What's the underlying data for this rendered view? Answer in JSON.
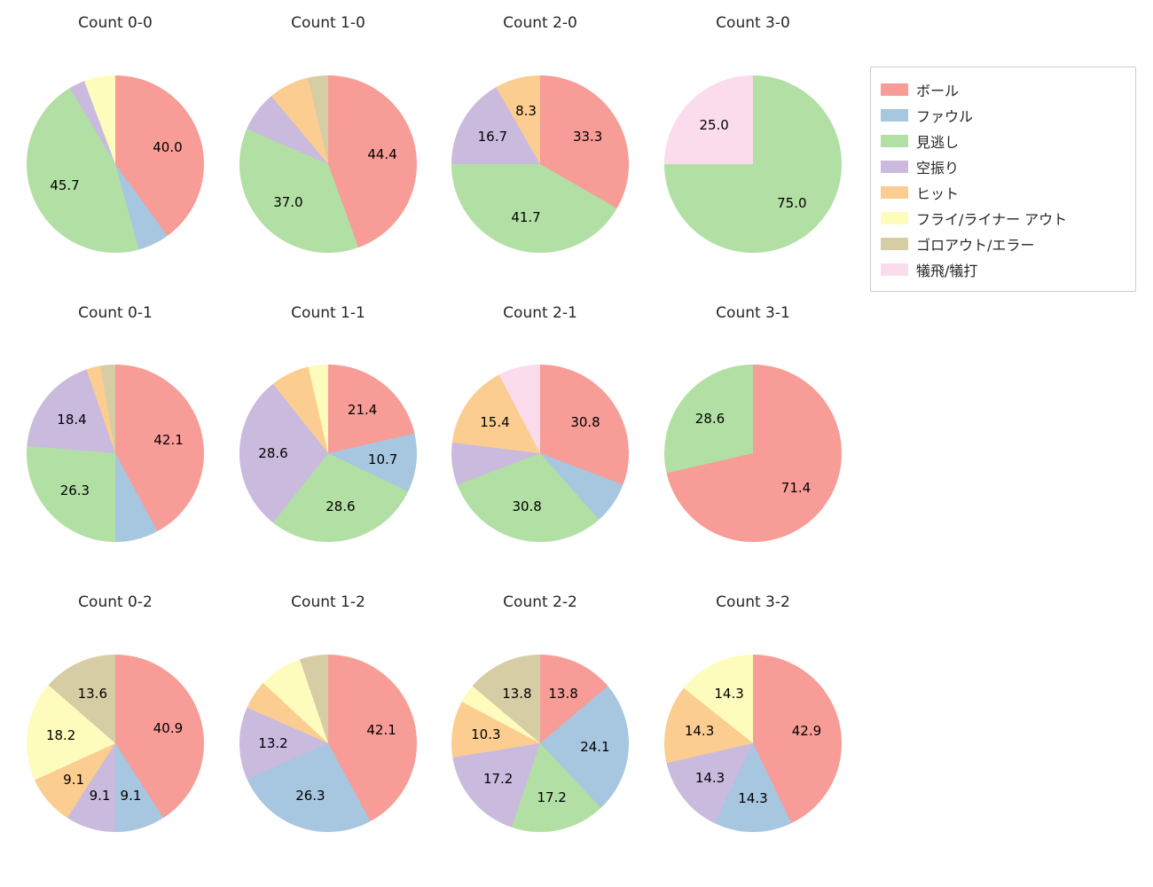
{
  "legend": {
    "position": "top-right",
    "items": [
      {
        "category": "ボール",
        "color": "#f79c96"
      },
      {
        "category": "ファウル",
        "color": "#a7c6e0"
      },
      {
        "category": "見逃し",
        "color": "#b2dfa4"
      },
      {
        "category": "空振り",
        "color": "#cabade"
      },
      {
        "category": "ヒット",
        "color": "#fbcd90"
      },
      {
        "category": "フライ/ライナー アウト",
        "color": "#fdfcbc"
      },
      {
        "category": "ゴロアウト/エラー",
        "color": "#d7cda5"
      },
      {
        "category": "犠飛/犠打",
        "color": "#fbdcec"
      }
    ]
  },
  "chart_data": [
    {
      "type": "pie",
      "title": "Count 0-0",
      "unit": "percent",
      "start_angle_deg": 0,
      "direction": "clockwise",
      "slices": [
        {
          "category": "ボール",
          "value": 40.0,
          "label": "40.0"
        },
        {
          "category": "ファウル",
          "value": 5.7,
          "label": ""
        },
        {
          "category": "見逃し",
          "value": 45.7,
          "label": "45.7"
        },
        {
          "category": "空振り",
          "value": 2.9,
          "label": ""
        },
        {
          "category": "フライ/ライナー アウト",
          "value": 5.7,
          "label": ""
        }
      ]
    },
    {
      "type": "pie",
      "title": "Count 1-0",
      "unit": "percent",
      "start_angle_deg": 0,
      "direction": "clockwise",
      "slices": [
        {
          "category": "ボール",
          "value": 44.4,
          "label": "44.4"
        },
        {
          "category": "見逃し",
          "value": 37.0,
          "label": "37.0"
        },
        {
          "category": "空振り",
          "value": 7.4,
          "label": ""
        },
        {
          "category": "ヒット",
          "value": 7.4,
          "label": ""
        },
        {
          "category": "ゴロアウト/エラー",
          "value": 3.7,
          "label": ""
        }
      ]
    },
    {
      "type": "pie",
      "title": "Count 2-0",
      "unit": "percent",
      "start_angle_deg": 0,
      "direction": "clockwise",
      "slices": [
        {
          "category": "ボール",
          "value": 33.3,
          "label": "33.3"
        },
        {
          "category": "見逃し",
          "value": 41.7,
          "label": "41.7"
        },
        {
          "category": "空振り",
          "value": 16.7,
          "label": "16.7"
        },
        {
          "category": "ヒット",
          "value": 8.3,
          "label": "8.3"
        }
      ]
    },
    {
      "type": "pie",
      "title": "Count 3-0",
      "unit": "percent",
      "start_angle_deg": 0,
      "direction": "clockwise",
      "slices": [
        {
          "category": "見逃し",
          "value": 75.0,
          "label": "75.0"
        },
        {
          "category": "犠飛/犠打",
          "value": 25.0,
          "label": "25.0"
        }
      ]
    },
    {
      "type": "pie",
      "title": "Count 0-1",
      "unit": "percent",
      "start_angle_deg": 0,
      "direction": "clockwise",
      "slices": [
        {
          "category": "ボール",
          "value": 42.1,
          "label": "42.1"
        },
        {
          "category": "ファウル",
          "value": 7.9,
          "label": ""
        },
        {
          "category": "見逃し",
          "value": 26.3,
          "label": "26.3"
        },
        {
          "category": "空振り",
          "value": 18.4,
          "label": "18.4"
        },
        {
          "category": "ヒット",
          "value": 2.6,
          "label": ""
        },
        {
          "category": "ゴロアウト/エラー",
          "value": 2.7,
          "label": ""
        }
      ]
    },
    {
      "type": "pie",
      "title": "Count 1-1",
      "unit": "percent",
      "start_angle_deg": 0,
      "direction": "clockwise",
      "slices": [
        {
          "category": "ボール",
          "value": 21.4,
          "label": "21.4"
        },
        {
          "category": "ファウル",
          "value": 10.7,
          "label": "10.7"
        },
        {
          "category": "見逃し",
          "value": 28.6,
          "label": "28.6"
        },
        {
          "category": "空振り",
          "value": 28.6,
          "label": "28.6"
        },
        {
          "category": "ヒット",
          "value": 7.1,
          "label": ""
        },
        {
          "category": "フライ/ライナー アウト",
          "value": 3.6,
          "label": ""
        }
      ]
    },
    {
      "type": "pie",
      "title": "Count 2-1",
      "unit": "percent",
      "start_angle_deg": 0,
      "direction": "clockwise",
      "slices": [
        {
          "category": "ボール",
          "value": 30.8,
          "label": "30.8"
        },
        {
          "category": "ファウル",
          "value": 7.7,
          "label": ""
        },
        {
          "category": "見逃し",
          "value": 30.8,
          "label": "30.8"
        },
        {
          "category": "空振り",
          "value": 7.7,
          "label": ""
        },
        {
          "category": "ヒット",
          "value": 15.4,
          "label": "15.4"
        },
        {
          "category": "犠飛/犠打",
          "value": 7.7,
          "label": ""
        }
      ]
    },
    {
      "type": "pie",
      "title": "Count 3-1",
      "unit": "percent",
      "start_angle_deg": 0,
      "direction": "clockwise",
      "slices": [
        {
          "category": "ボール",
          "value": 71.4,
          "label": "71.4"
        },
        {
          "category": "見逃し",
          "value": 28.6,
          "label": "28.6"
        }
      ]
    },
    {
      "type": "pie",
      "title": "Count 0-2",
      "unit": "percent",
      "start_angle_deg": 0,
      "direction": "clockwise",
      "slices": [
        {
          "category": "ボール",
          "value": 40.9,
          "label": "40.9"
        },
        {
          "category": "ファウル",
          "value": 9.1,
          "label": "9.1"
        },
        {
          "category": "空振り",
          "value": 9.1,
          "label": "9.1"
        },
        {
          "category": "ヒット",
          "value": 9.1,
          "label": "9.1"
        },
        {
          "category": "フライ/ライナー アウト",
          "value": 18.2,
          "label": "18.2"
        },
        {
          "category": "ゴロアウト/エラー",
          "value": 13.6,
          "label": "13.6"
        }
      ]
    },
    {
      "type": "pie",
      "title": "Count 1-2",
      "unit": "percent",
      "start_angle_deg": 0,
      "direction": "clockwise",
      "slices": [
        {
          "category": "ボール",
          "value": 42.1,
          "label": "42.1"
        },
        {
          "category": "ファウル",
          "value": 26.3,
          "label": "26.3"
        },
        {
          "category": "空振り",
          "value": 13.2,
          "label": "13.2"
        },
        {
          "category": "ヒット",
          "value": 5.3,
          "label": ""
        },
        {
          "category": "フライ/ライナー アウト",
          "value": 7.9,
          "label": ""
        },
        {
          "category": "ゴロアウト/エラー",
          "value": 5.2,
          "label": ""
        }
      ]
    },
    {
      "type": "pie",
      "title": "Count 2-2",
      "unit": "percent",
      "start_angle_deg": 0,
      "direction": "clockwise",
      "slices": [
        {
          "category": "ボール",
          "value": 13.8,
          "label": "13.8"
        },
        {
          "category": "ファウル",
          "value": 24.1,
          "label": "24.1"
        },
        {
          "category": "見逃し",
          "value": 17.2,
          "label": "17.2"
        },
        {
          "category": "空振り",
          "value": 17.2,
          "label": "17.2"
        },
        {
          "category": "ヒット",
          "value": 10.3,
          "label": "10.3"
        },
        {
          "category": "フライ/ライナー アウト",
          "value": 3.4,
          "label": ""
        },
        {
          "category": "ゴロアウト/エラー",
          "value": 13.8,
          "label": "13.8"
        }
      ]
    },
    {
      "type": "pie",
      "title": "Count 3-2",
      "unit": "percent",
      "start_angle_deg": 0,
      "direction": "clockwise",
      "slices": [
        {
          "category": "ボール",
          "value": 42.9,
          "label": "42.9"
        },
        {
          "category": "ファウル",
          "value": 14.3,
          "label": "14.3"
        },
        {
          "category": "空振り",
          "value": 14.3,
          "label": "14.3"
        },
        {
          "category": "ヒット",
          "value": 14.3,
          "label": "14.3"
        },
        {
          "category": "フライ/ライナー アウト",
          "value": 14.3,
          "label": "14.3"
        }
      ]
    }
  ]
}
